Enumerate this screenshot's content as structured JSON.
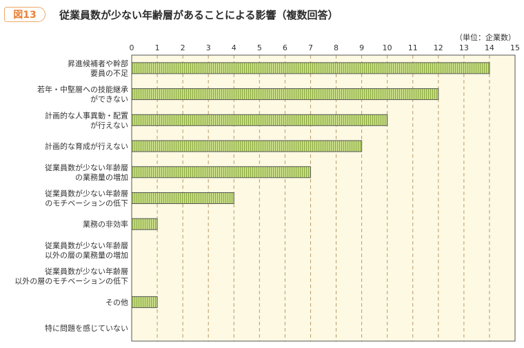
{
  "figure": {
    "badge": "図13",
    "title": "従業員数が少ない年齢層があることによる影響（複数回答）",
    "unit": "（単位：企業数）"
  },
  "colors": {
    "plot_bg": "#fdf9e3",
    "bar_fill": "#c8dc8a",
    "bar_stripe": "#8aaa3c",
    "grid": "#b89a6a",
    "accent": "#e8823a"
  },
  "chart_data": {
    "type": "bar",
    "orientation": "horizontal",
    "categories": [
      "昇進候補者や幹部\n要員の不足",
      "若年・中堅層への技能継承\nができない",
      "計画的な人事異動・配置\nが行えない",
      "計画的な育成が行えない",
      "従業員数が少ない年齢層\nの業務量の増加",
      "従業員数が少ない年齢層\nのモチベーションの低下",
      "業務の非効率",
      "従業員数が少ない年齢層\n以外の層の業務量の増加",
      "従業員数が少ない年齢層\n以外の層のモチベーションの低下",
      "その他",
      "特に問題を感じていない"
    ],
    "values": [
      14,
      12,
      10,
      9,
      7,
      4,
      1,
      0,
      0,
      1,
      0
    ],
    "xlim": [
      0,
      15
    ],
    "xticks": [
      0,
      1,
      2,
      3,
      4,
      5,
      6,
      7,
      8,
      9,
      10,
      11,
      12,
      13,
      14,
      15
    ],
    "grid": true
  }
}
